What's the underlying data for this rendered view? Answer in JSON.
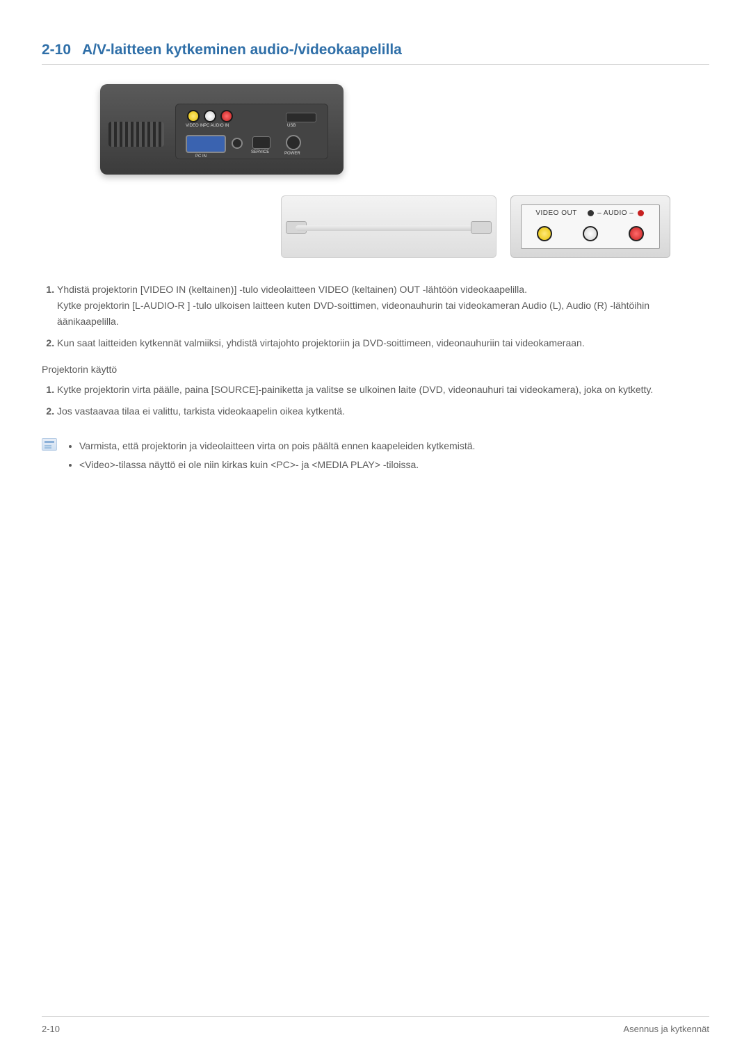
{
  "heading": {
    "number": "2-10",
    "title": "A/V-laitteen kytkeminen audio-/videokaapelilla",
    "color": "#2f6fa8"
  },
  "diagram": {
    "projector_ports": {
      "video_in": "VIDEO IN",
      "audio_in": "L-AUDIO-R",
      "pc_audio_in": "PC AUDIO IN",
      "usb": "USB",
      "pc_in": "PC IN",
      "service": "SERVICE",
      "power": "POWER"
    },
    "external_panel": {
      "video_out_label": "VIDEO OUT",
      "audio_label_prefix": "– AUDIO –",
      "jack_colors": [
        "#e6c100",
        "#cfcfcf",
        "#c62020"
      ]
    },
    "rca_colors": {
      "yellow": "#e6c100",
      "white": "#cfcfcf",
      "red": "#c62020"
    },
    "cable_color": "#cfcfcf",
    "projector_bg": "#3b3b3b"
  },
  "steps_a": [
    {
      "text": "Yhdistä projektorin [VIDEO IN (keltainen)] -tulo videolaitteen VIDEO (keltainen) OUT -lähtöön videokaapelilla.",
      "text2": "Kytke projektorin [L-AUDIO-R ] -tulo ulkoisen laitteen kuten DVD-soittimen, videonauhurin tai videokameran Audio (L), Audio (R) -lähtöihin äänikaapelilla."
    },
    {
      "text": "Kun saat laitteiden kytkennät valmiiksi, yhdistä virtajohto projektoriin ja DVD-soittimeen, videonauhuriin tai videokameraan."
    }
  ],
  "usage_heading": "Projektorin käyttö",
  "steps_b": [
    {
      "text": "Kytke projektorin virta päälle, paina [SOURCE]-painiketta ja valitse se ulkoinen laite (DVD, videonauhuri tai videokamera), joka on kytketty."
    },
    {
      "text": "Jos vastaavaa tilaa ei valittu, tarkista videokaapelin oikea kytkentä."
    }
  ],
  "notes": [
    "Varmista, että projektorin ja videolaitteen virta on pois päältä ennen kaapeleiden kytkemistä.",
    "<Video>-tilassa näyttö ei ole niin kirkas kuin <PC>- ja <MEDIA PLAY> -tiloissa."
  ],
  "footer": {
    "left": "2-10",
    "right": "Asennus ja kytkennät"
  },
  "colors": {
    "text": "#5a5a5a",
    "rule": "#d0d0d0",
    "heading": "#2f6fa8",
    "background": "#ffffff"
  },
  "typography": {
    "body_fontsize_pt": 10.5,
    "heading_fontsize_pt": 16,
    "line_height": 1.65
  }
}
